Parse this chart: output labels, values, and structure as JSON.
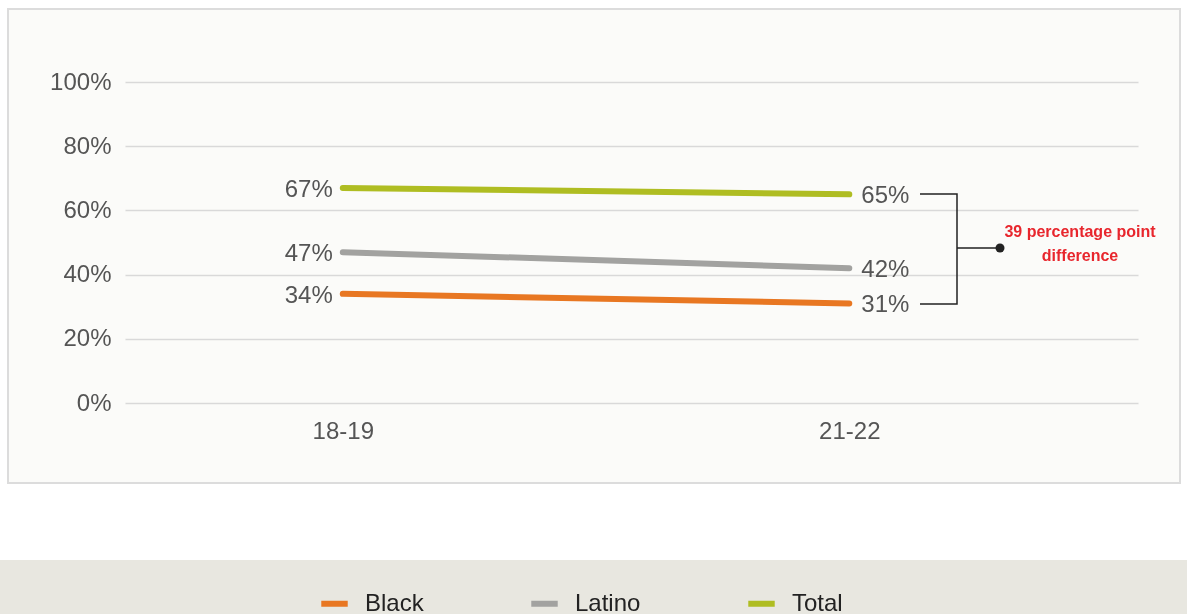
{
  "chart_data": {
    "type": "line",
    "categories": [
      "18-19",
      "21-22"
    ],
    "series": [
      {
        "name": "Black",
        "color": "#e87722",
        "values": [
          34,
          31
        ],
        "value_labels": [
          "34%",
          "31%"
        ]
      },
      {
        "name": "Latino",
        "color": "#a2a2a0",
        "values": [
          47,
          42
        ],
        "value_labels": [
          "47%",
          "42%"
        ]
      },
      {
        "name": "Total",
        "color": "#afbd22",
        "values": [
          67,
          65
        ],
        "value_labels": [
          "67%",
          "65%"
        ]
      }
    ],
    "ylim": [
      0,
      100
    ],
    "yticks": [
      {
        "value": 0,
        "label": "0%"
      },
      {
        "value": 20,
        "label": "20%"
      },
      {
        "value": 40,
        "label": "40%"
      },
      {
        "value": 60,
        "label": "60%"
      },
      {
        "value": 80,
        "label": "80%"
      },
      {
        "value": 100,
        "label": "100%"
      }
    ],
    "grid": "y",
    "legend": "bottom",
    "annotations": [
      "39 percentage point difference"
    ]
  }
}
